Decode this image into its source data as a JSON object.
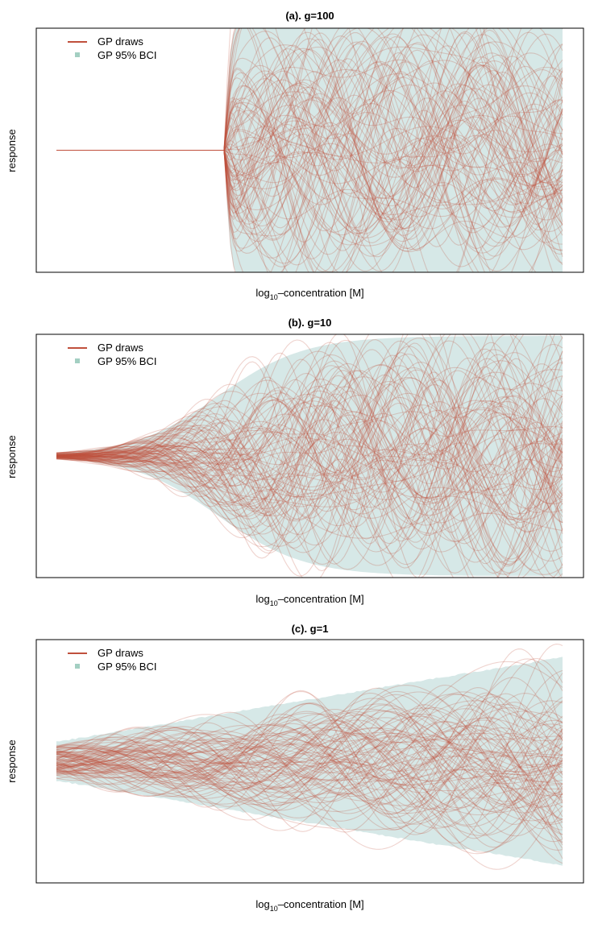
{
  "figure_style": {
    "draw_color": "#c0503c",
    "band_color": "#d6e8e7",
    "legend_band_color": "#a3cfc2",
    "frame_color": "#000000"
  },
  "chart_data": [
    {
      "type": "line",
      "title": "(a). g=100",
      "xlabel": "log10–concentration [M]",
      "xlabel_parts": {
        "pre": "log",
        "sub": "10",
        "post": "–concentration [M]"
      },
      "ylabel": "response",
      "g": 100,
      "x_ticks_shown": false,
      "y_ticks_shown": false,
      "grid": false,
      "legend": {
        "position": "top-left",
        "entries": [
          {
            "label": "GP draws",
            "kind": "line",
            "color": "#c0503c"
          },
          {
            "label": "GP 95% BCI",
            "kind": "square",
            "color": "#a3cfc2"
          }
        ]
      },
      "series": [
        {
          "name": "GP draws",
          "kind": "lines",
          "count": 100,
          "color": "#c0503c",
          "opacity": 0.25,
          "behavior": "all draws pinned to a single constant response until the transition, then spread to fill the full band"
        },
        {
          "name": "GP 95% BCI",
          "kind": "band",
          "color": "#d6e8e7",
          "behavior": "zero width before the transition, then extends past the top and bottom of the panel"
        }
      ]
    },
    {
      "type": "line",
      "title": "(b). g=10",
      "xlabel": "log10–concentration [M]",
      "xlabel_parts": {
        "pre": "log",
        "sub": "10",
        "post": "–concentration [M]"
      },
      "ylabel": "response",
      "g": 10,
      "x_ticks_shown": false,
      "y_ticks_shown": false,
      "grid": false,
      "legend": {
        "position": "top-left",
        "entries": [
          {
            "label": "GP draws",
            "kind": "line",
            "color": "#c0503c"
          },
          {
            "label": "GP 95% BCI",
            "kind": "square",
            "color": "#a3cfc2"
          }
        ]
      },
      "series": [
        {
          "name": "GP draws",
          "kind": "lines",
          "count": 100,
          "color": "#c0503c",
          "opacity": 0.25,
          "behavior": "draws converge to a constant response on the left and fan out gradually toward the right"
        },
        {
          "name": "GP 95% BCI",
          "kind": "band",
          "color": "#d6e8e7",
          "behavior": "widens smoothly from zero to the full panel height"
        }
      ]
    },
    {
      "type": "line",
      "title": "(c). g=1",
      "xlabel": "log10–concentration [M]",
      "xlabel_parts": {
        "pre": "log",
        "sub": "10",
        "post": "–concentration [M]"
      },
      "ylabel": "response",
      "g": 1,
      "x_ticks_shown": false,
      "y_ticks_shown": false,
      "grid": false,
      "legend": {
        "position": "top-left",
        "entries": [
          {
            "label": "GP draws",
            "kind": "line",
            "color": "#c0503c"
          },
          {
            "label": "GP 95% BCI",
            "kind": "square",
            "color": "#a3cfc2"
          }
        ]
      },
      "series": [
        {
          "name": "GP draws",
          "kind": "lines",
          "count": 100,
          "color": "#c0503c",
          "opacity": 0.25,
          "behavior": "draws start spread around the center and widen steadily to the right"
        },
        {
          "name": "GP 95% BCI",
          "kind": "band",
          "color": "#d6e8e7",
          "behavior": "narrow on the left, widening steadily toward the right"
        }
      ]
    }
  ]
}
